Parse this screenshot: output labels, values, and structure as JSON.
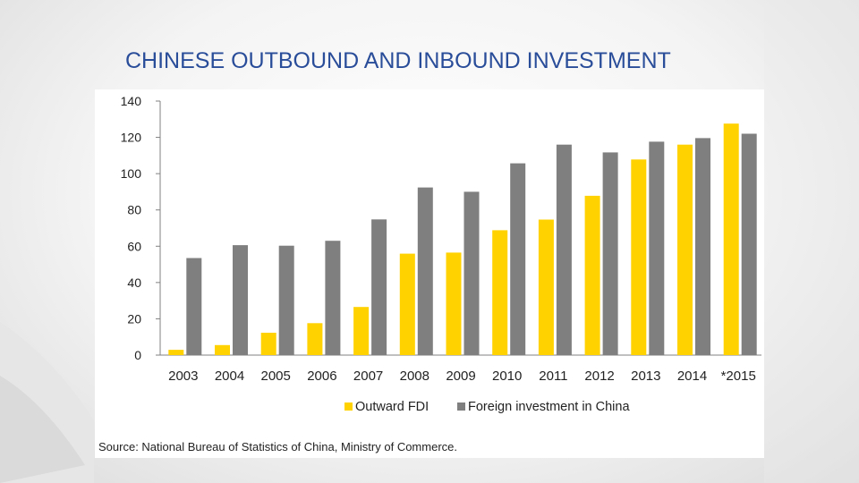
{
  "slide": {
    "title": "CHINESE OUTBOUND AND INBOUND INVESTMENT",
    "source": "Source: National Bureau of Statistics of China, Ministry of Commerce."
  },
  "colors": {
    "title": "#2a4d9a",
    "outward": "#ffd200",
    "foreign": "#7f7f7f",
    "axis": "#808080"
  },
  "chart_data": {
    "type": "bar",
    "categories": [
      "2003",
      "2004",
      "2005",
      "2006",
      "2007",
      "2008",
      "2009",
      "2010",
      "2011",
      "2012",
      "2013",
      "2014",
      "*2015"
    ],
    "series": [
      {
        "name": "Outward FDI",
        "color": "#ffd200",
        "values": [
          2.9,
          5.5,
          12.3,
          17.6,
          26.5,
          55.9,
          56.5,
          68.8,
          74.7,
          87.8,
          107.8,
          116.0,
          127.6
        ]
      },
      {
        "name": "Foreign investment in China",
        "color": "#7f7f7f",
        "values": [
          53.5,
          60.6,
          60.3,
          63.0,
          74.8,
          92.4,
          90.0,
          105.7,
          116.0,
          111.7,
          117.6,
          119.6,
          122.0
        ]
      }
    ],
    "yticks": [
      0,
      20,
      40,
      60,
      80,
      100,
      120,
      140
    ],
    "ylim": [
      0,
      140
    ],
    "grid": false,
    "legend_position": "bottom"
  }
}
